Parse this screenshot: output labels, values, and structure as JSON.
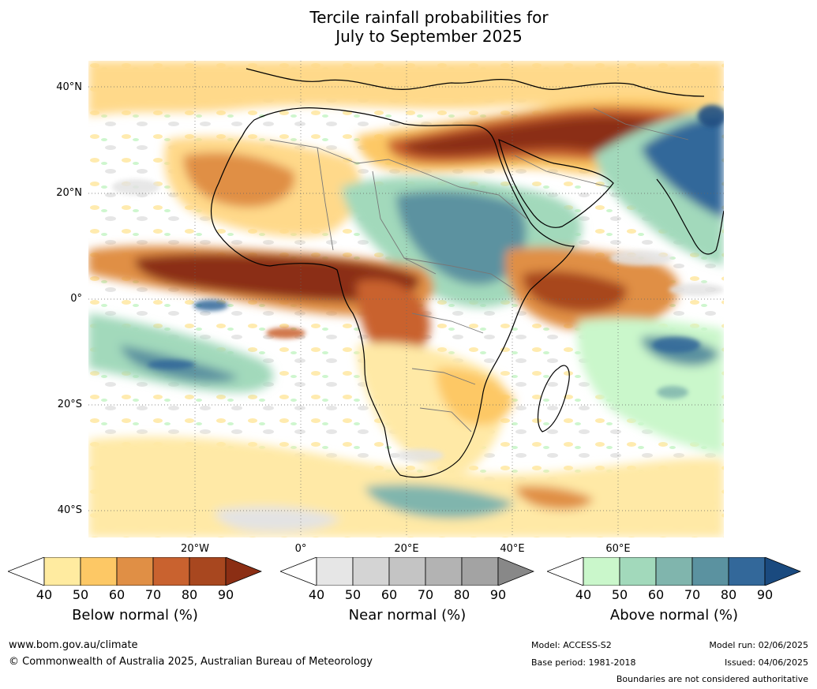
{
  "title": {
    "line1": "Tercile rainfall probabilities for",
    "line2": "July to September 2025"
  },
  "map": {
    "lat_labels": [
      "40°N",
      "20°N",
      "0°",
      "20°S",
      "40°S"
    ],
    "lon_labels": [
      "20°W",
      "0°",
      "20°E",
      "40°E",
      "60°E"
    ]
  },
  "colorbars": {
    "below": {
      "label": "Below normal (%)",
      "ticks": [
        "40",
        "50",
        "60",
        "70",
        "80",
        "90"
      ],
      "colors": [
        "#ffffff",
        "#ffeba0",
        "#fdc865",
        "#e08f45",
        "#c9622f",
        "#a8471f",
        "#8b2e14"
      ]
    },
    "near": {
      "label": "Near normal (%)",
      "ticks": [
        "40",
        "50",
        "60",
        "70",
        "80",
        "90"
      ],
      "colors": [
        "#ffffff",
        "#e6e6e6",
        "#d4d4d4",
        "#c4c4c4",
        "#b3b3b3",
        "#a3a3a3",
        "#888888"
      ]
    },
    "above": {
      "label": "Above normal (%)",
      "ticks": [
        "40",
        "50",
        "60",
        "70",
        "80",
        "90"
      ],
      "colors": [
        "#ffffff",
        "#caf7cb",
        "#a2d9bb",
        "#80b5ad",
        "#5b92a0",
        "#33689a",
        "#1a4a7f"
      ]
    }
  },
  "footer": {
    "url": "www.bom.gov.au/climate",
    "copyright": "© Commonwealth of Australia 2025, Australian Bureau of Meteorology",
    "model": "Model: ACCESS-S2",
    "base_period": "Base period: 1981-2018",
    "model_run": "Model run: 02/06/2025",
    "issued": "Issued: 04/06/2025",
    "disclaimer": "Boundaries are not considered authoritative"
  }
}
